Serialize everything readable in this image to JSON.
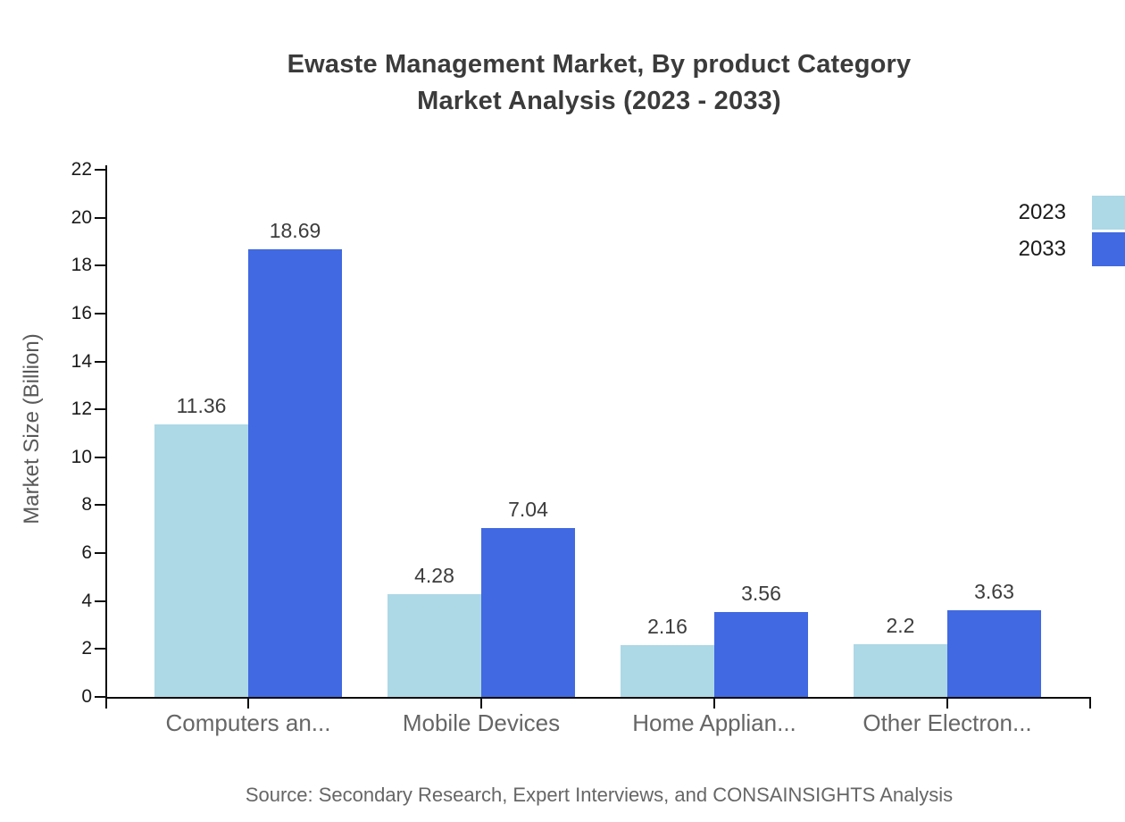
{
  "title": {
    "line1": "Ewaste Management Market, By product Category",
    "line2": "Market Analysis (2023 - 2033)"
  },
  "source": "Source: Secondary Research, Expert Interviews, and CONSAINSIGHTS Analysis",
  "legend": {
    "items": [
      {
        "label": "2023",
        "color": "#ADD8E6"
      },
      {
        "label": "2033",
        "color": "#4169E1"
      }
    ]
  },
  "colors": {
    "series_2023": "#ADD8E6",
    "series_2033": "#4169E1",
    "axis": "#0D0D0D",
    "title_text": "#3B3B3B",
    "tick_text": "#1A1A1A",
    "category_text": "#666666",
    "value_text": "#3C3C3C",
    "source_text": "#666666",
    "axis_label_text": "#595959"
  },
  "chart_data": {
    "type": "bar",
    "title": "Ewaste Management Market, By product Category Market Analysis (2023 - 2033)",
    "categories": [
      "Computers an...",
      "Mobile Devices",
      "Home Applian...",
      "Other Electron..."
    ],
    "series": [
      {
        "name": "2023",
        "values": [
          11.36,
          4.28,
          2.16,
          2.2
        ]
      },
      {
        "name": "2033",
        "values": [
          18.69,
          7.04,
          3.56,
          3.63
        ]
      }
    ],
    "xlabel": "",
    "ylabel": "Market Size (Billion)",
    "ylim": [
      0,
      22
    ],
    "ytick_step": 2,
    "grid": false,
    "legend_position": "top-right",
    "bar_value_labels_shown": true
  }
}
